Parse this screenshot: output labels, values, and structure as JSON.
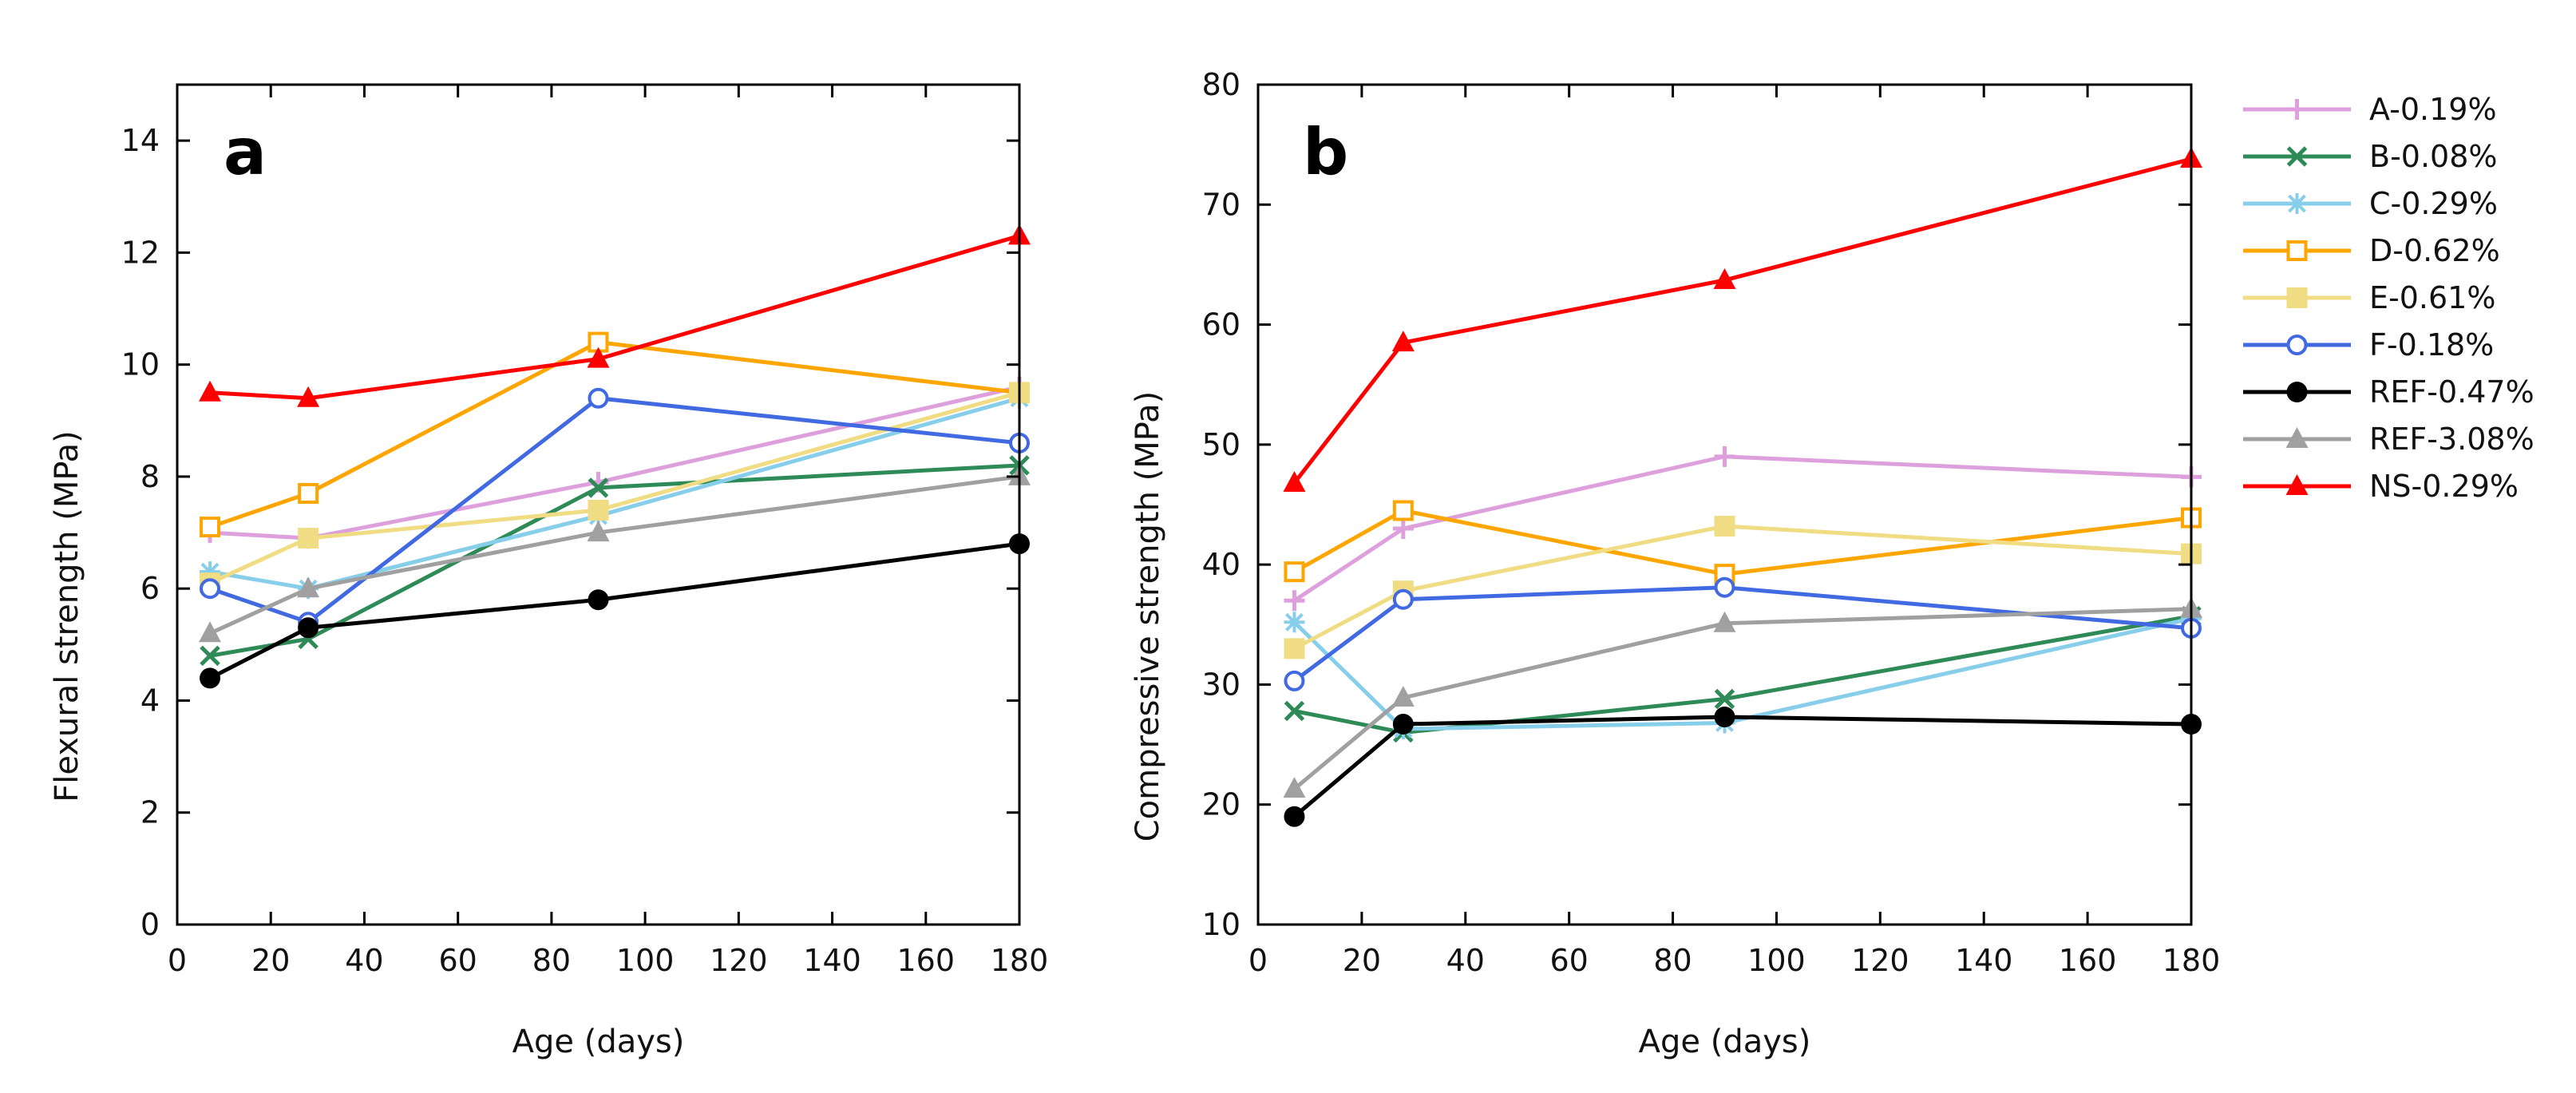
{
  "chart_data": [
    {
      "type": "line",
      "panel": "a",
      "xlabel": "Age (days)",
      "ylabel": "Flexural strength (MPa)",
      "xlim": [
        0,
        180
      ],
      "ylim": [
        0,
        15
      ],
      "xticks": [
        0,
        20,
        40,
        60,
        80,
        100,
        120,
        140,
        160,
        180
      ],
      "yticks": [
        0,
        2,
        4,
        6,
        8,
        10,
        12,
        14
      ],
      "x": [
        7,
        28,
        90,
        180
      ],
      "grid": false,
      "series": [
        {
          "name": "A-0.19%",
          "values": [
            7.0,
            6.9,
            7.9,
            9.6
          ]
        },
        {
          "name": "B-0.08%",
          "values": [
            4.8,
            5.1,
            7.8,
            8.2
          ]
        },
        {
          "name": "C-0.29%",
          "values": [
            6.3,
            6.0,
            7.3,
            9.4
          ]
        },
        {
          "name": "D-0.62%",
          "values": [
            7.1,
            7.7,
            10.4,
            9.5
          ]
        },
        {
          "name": "E-0.61%",
          "values": [
            6.1,
            6.9,
            7.4,
            9.5
          ]
        },
        {
          "name": "F-0.18%",
          "values": [
            6.0,
            5.4,
            9.4,
            8.6
          ]
        },
        {
          "name": "REF-0.47%",
          "values": [
            4.4,
            5.3,
            5.8,
            6.8
          ]
        },
        {
          "name": "REF-3.08%",
          "values": [
            5.2,
            6.0,
            7.0,
            8.0
          ]
        },
        {
          "name": "NS-0.29%",
          "values": [
            9.5,
            9.4,
            10.1,
            12.3
          ]
        }
      ]
    },
    {
      "type": "line",
      "panel": "b",
      "xlabel": "Age (days)",
      "ylabel": "Compressive strength (MPa)",
      "xlim": [
        0,
        180
      ],
      "ylim": [
        10,
        80
      ],
      "xticks": [
        0,
        20,
        40,
        60,
        80,
        100,
        120,
        140,
        160,
        180
      ],
      "yticks": [
        10,
        20,
        30,
        40,
        50,
        60,
        70,
        80
      ],
      "x": [
        7,
        28,
        90,
        180
      ],
      "grid": false,
      "legend_position": "right",
      "series": [
        {
          "name": "A-0.19%",
          "values": [
            37.0,
            43.0,
            49.0,
            47.3
          ]
        },
        {
          "name": "B-0.08%",
          "values": [
            27.8,
            26.0,
            28.8,
            35.7
          ]
        },
        {
          "name": "C-0.29%",
          "values": [
            35.2,
            26.3,
            26.8,
            35.5
          ]
        },
        {
          "name": "D-0.62%",
          "values": [
            39.4,
            44.5,
            39.2,
            43.9
          ]
        },
        {
          "name": "E-0.61%",
          "values": [
            33.0,
            37.8,
            43.2,
            40.9
          ]
        },
        {
          "name": "F-0.18%",
          "values": [
            30.3,
            37.1,
            38.1,
            34.7
          ]
        },
        {
          "name": "REF-0.47%",
          "values": [
            19.0,
            26.7,
            27.3,
            26.7
          ]
        },
        {
          "name": "REF-3.08%",
          "values": [
            21.3,
            28.9,
            35.1,
            36.3
          ]
        },
        {
          "name": "NS-0.29%",
          "values": [
            46.8,
            58.5,
            63.7,
            73.8
          ]
        }
      ]
    }
  ],
  "legend": [
    {
      "name": "A-0.19%",
      "color": "#dda0dd",
      "marker": "plus"
    },
    {
      "name": "B-0.08%",
      "color": "#2e8b57",
      "marker": "cross"
    },
    {
      "name": "C-0.29%",
      "color": "#87ceeb",
      "marker": "asterisk"
    },
    {
      "name": "D-0.62%",
      "color": "#ffa500",
      "marker": "open-square"
    },
    {
      "name": "E-0.61%",
      "color": "#f0dc82",
      "marker": "filled-square"
    },
    {
      "name": "F-0.18%",
      "color": "#4169e1",
      "marker": "open-circle"
    },
    {
      "name": "REF-0.47%",
      "color": "#000000",
      "marker": "filled-circle"
    },
    {
      "name": "REF-3.08%",
      "color": "#a0a0a0",
      "marker": "filled-triangle"
    },
    {
      "name": "NS-0.29%",
      "color": "#ff0000",
      "marker": "filled-triangle"
    }
  ]
}
